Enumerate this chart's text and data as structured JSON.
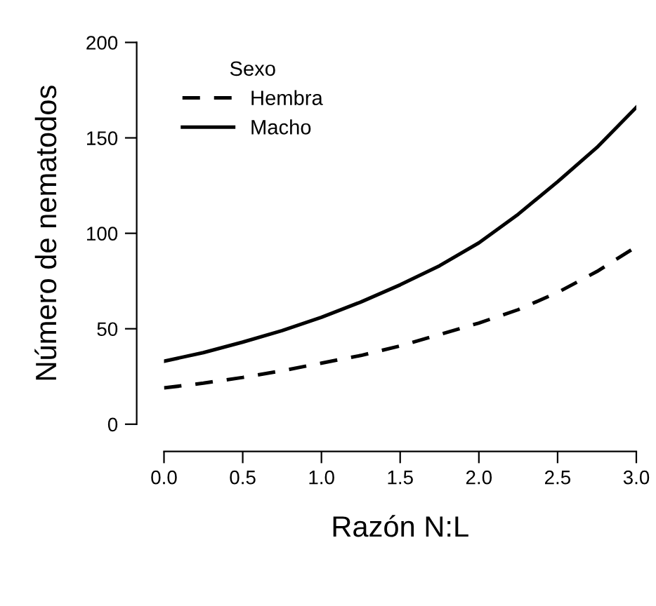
{
  "chart_data": {
    "type": "line",
    "xlabel": "Razón N:L",
    "ylabel": "Número de nematodos",
    "legend_title": "Sexo",
    "legend": "top left",
    "grid": false,
    "x": [
      0,
      0.25,
      0.5,
      0.75,
      1,
      1.25,
      1.5,
      1.75,
      2,
      2.25,
      2.5,
      2.75,
      3
    ],
    "series": [
      {
        "name": "Hembra",
        "color": "#000000",
        "line_style": "dashed",
        "values": [
          19,
          21.5,
          24.5,
          28,
          32,
          36,
          41,
          47,
          53,
          60,
          69,
          80,
          93
        ]
      },
      {
        "name": "Macho",
        "color": "#000000",
        "line_style": "solid",
        "values": [
          33,
          37.5,
          43,
          49,
          56,
          64,
          73,
          83,
          95,
          110,
          127,
          145,
          166
        ]
      }
    ],
    "xlim": [
      0,
      3
    ],
    "ylim": [
      0,
      200
    ],
    "xticks": [
      {
        "value": 0,
        "label": "0.0"
      },
      {
        "value": 0.5,
        "label": "0.5"
      },
      {
        "value": 1,
        "label": "1.0"
      },
      {
        "value": 1.5,
        "label": "1.5"
      },
      {
        "value": 2,
        "label": "2.0"
      },
      {
        "value": 2.5,
        "label": "2.5"
      },
      {
        "value": 3,
        "label": "3.0"
      }
    ],
    "yticks": [
      0,
      50,
      100,
      150,
      200
    ]
  }
}
